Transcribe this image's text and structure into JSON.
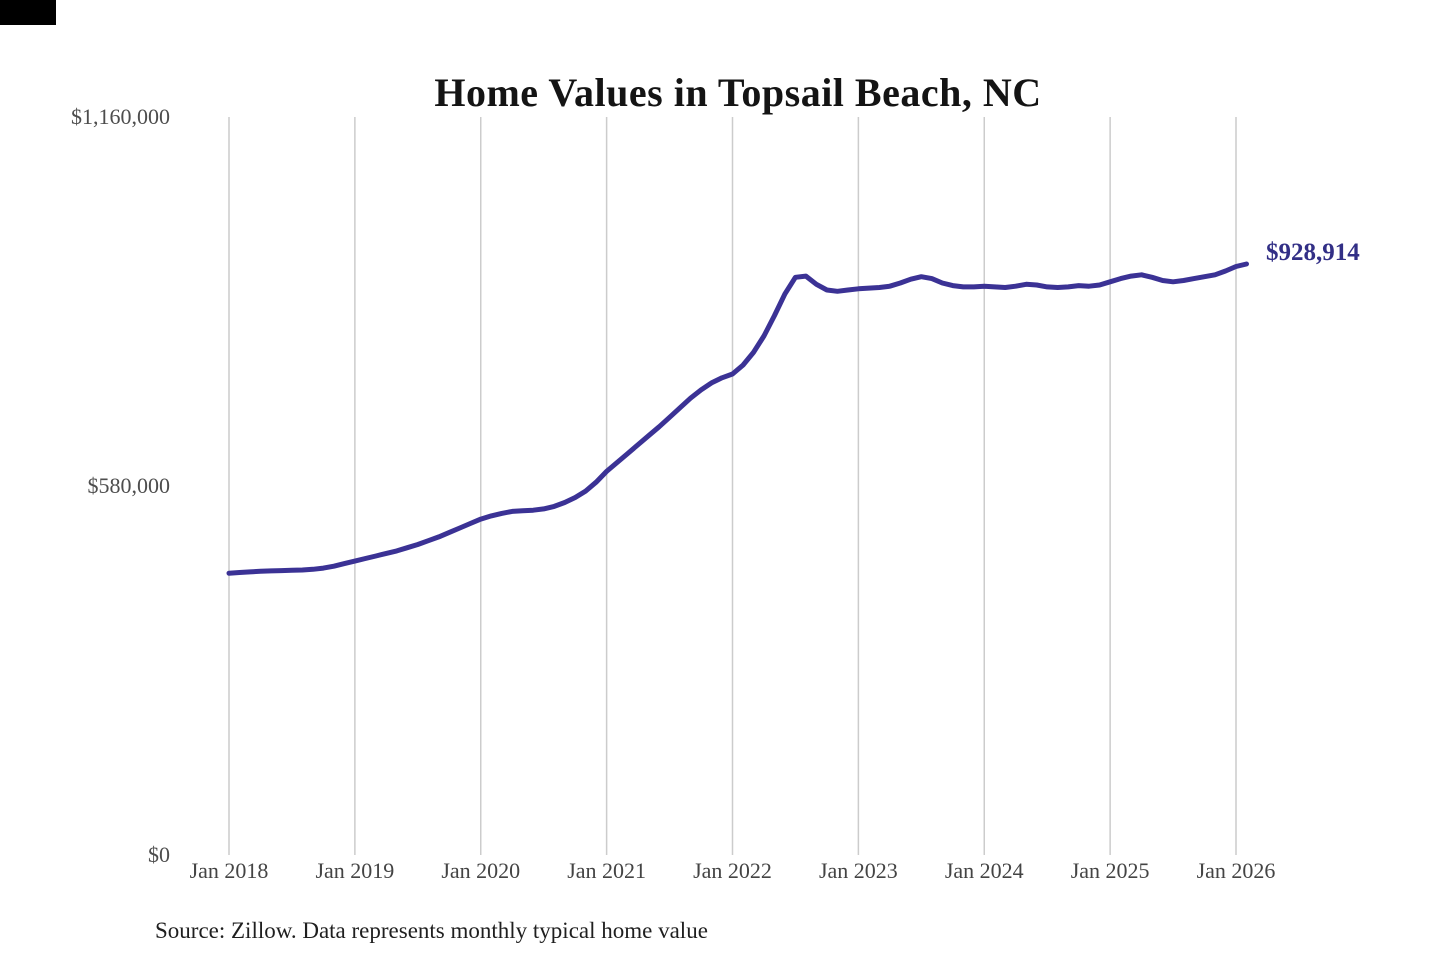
{
  "chart_data": {
    "type": "line",
    "title": "Home Values in Topsail Beach, NC",
    "source_note": "Source: Zillow. Data represents monthly typical home value",
    "end_label": "$928,914",
    "final_value": 928914,
    "ylim": [
      0,
      1160000
    ],
    "grid": "vertical-only",
    "y_ticks": [
      {
        "label": "$1,160,000",
        "value": 1160000
      },
      {
        "label": "$580,000",
        "value": 580000
      },
      {
        "label": "$0",
        "value": 0
      }
    ],
    "x_tick_labels": [
      "Jan 2018",
      "Jan 2019",
      "Jan 2020",
      "Jan 2021",
      "Jan 2022",
      "Jan 2023",
      "Jan 2024",
      "Jan 2025",
      "Jan 2026"
    ],
    "series": [
      {
        "name": "monthly-typical-home-value",
        "start_month": "2018-01",
        "frequency": "monthly",
        "values": [
          443000,
          444000,
          445000,
          446000,
          446500,
          447000,
          447500,
          448000,
          449000,
          451000,
          454000,
          458000,
          462000,
          466000,
          470000,
          474000,
          478000,
          483000,
          488000,
          494000,
          500000,
          507000,
          514000,
          521000,
          528000,
          533000,
          537000,
          540000,
          541000,
          542000,
          544000,
          548000,
          554000,
          562000,
          572000,
          586000,
          603000,
          617000,
          631000,
          645000,
          659000,
          673000,
          688000,
          703000,
          718000,
          731000,
          742000,
          750000,
          756000,
          770000,
          790000,
          816000,
          848000,
          882000,
          908000,
          910000,
          897000,
          888000,
          886000,
          888000,
          890000,
          891000,
          892000,
          894000,
          899000,
          905000,
          909000,
          906000,
          899000,
          895000,
          893000,
          893000,
          894000,
          893000,
          892000,
          894000,
          897000,
          896000,
          893000,
          892000,
          893000,
          895000,
          894000,
          896000,
          901000,
          906000,
          910000,
          912000,
          908000,
          903000,
          901000,
          903000,
          906000,
          909000,
          912000,
          918000,
          925000,
          928914
        ]
      }
    ],
    "colors": {
      "line": "#3b3295",
      "end_label": "#322f86",
      "grid": "#cccccc",
      "axis_text": "#4d4d4d",
      "title_text": "#141414",
      "source_text": "#1f1f1f",
      "background": "#ffffff",
      "corner_mark": "#000000"
    }
  }
}
